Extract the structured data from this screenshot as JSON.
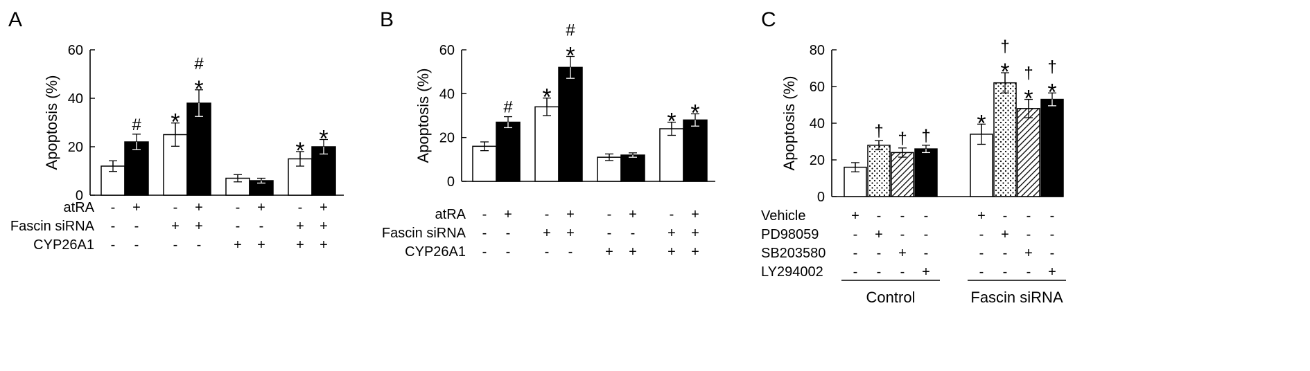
{
  "chart_data": [
    {
      "type": "bar",
      "panel_label": "A",
      "ylabel": "Apoptosis (%)",
      "ylim": [
        0,
        60
      ],
      "yticks": [
        "0",
        "20",
        "40",
        "60"
      ],
      "bar_fills": [
        "white",
        "black",
        "white",
        "black",
        "white",
        "black",
        "white",
        "black"
      ],
      "values": [
        12,
        22,
        25,
        38,
        7,
        6,
        15,
        20
      ],
      "errors": [
        2.2,
        3.2,
        4.8,
        5.5,
        1.5,
        1.0,
        3.0,
        3.0
      ],
      "significance": [
        [],
        [
          "#"
        ],
        [
          "*"
        ],
        [
          "*",
          "#"
        ],
        [],
        [],
        [
          "*"
        ],
        [
          "*"
        ]
      ],
      "conditions": [
        {
          "label": "atRA",
          "signs": [
            "-",
            "+",
            "-",
            "+",
            "-",
            "+",
            "-",
            "+"
          ]
        },
        {
          "label": "Fascin siRNA",
          "signs": [
            "-",
            "-",
            "+",
            "+",
            "-",
            "-",
            "+",
            "+"
          ]
        },
        {
          "label": "CYP26A1",
          "signs": [
            "-",
            "-",
            "-",
            "-",
            "+",
            "+",
            "+",
            "+"
          ]
        }
      ]
    },
    {
      "type": "bar",
      "panel_label": "B",
      "ylabel": "Apoptosis (%)",
      "ylim": [
        0,
        60
      ],
      "yticks": [
        "0",
        "20",
        "40",
        "60"
      ],
      "bar_fills": [
        "white",
        "black",
        "white",
        "black",
        "white",
        "black",
        "white",
        "black"
      ],
      "values": [
        16,
        27,
        34,
        52,
        11,
        12,
        24,
        28
      ],
      "errors": [
        2.0,
        2.5,
        4.0,
        5.0,
        1.5,
        1.0,
        3.0,
        2.8
      ],
      "significance": [
        [],
        [
          "#"
        ],
        [
          "*"
        ],
        [
          "*",
          "#"
        ],
        [],
        [],
        [
          "*"
        ],
        [
          "*"
        ]
      ],
      "conditions": [
        {
          "label": "atRA",
          "signs": [
            "-",
            "+",
            "-",
            "+",
            "-",
            "+",
            "-",
            "+"
          ]
        },
        {
          "label": "Fascin siRNA",
          "signs": [
            "-",
            "-",
            "+",
            "+",
            "-",
            "-",
            "+",
            "+"
          ]
        },
        {
          "label": "CYP26A1",
          "signs": [
            "-",
            "-",
            "-",
            "-",
            "+",
            "+",
            "+",
            "+"
          ]
        }
      ]
    },
    {
      "type": "bar",
      "panel_label": "C",
      "ylabel": "Apoptosis (%)",
      "ylim": [
        0,
        80
      ],
      "yticks": [
        "0",
        "20",
        "40",
        "60",
        "80"
      ],
      "bar_fills": [
        "white",
        "dots",
        "hatch",
        "black",
        "white",
        "dots",
        "hatch",
        "black"
      ],
      "values": [
        16,
        28,
        24,
        26,
        34,
        62,
        48,
        53
      ],
      "errors": [
        2.5,
        2.5,
        2.5,
        2.0,
        5.5,
        5.5,
        5.0,
        3.5
      ],
      "significance": [
        [],
        [
          "†"
        ],
        [
          "†"
        ],
        [
          "†"
        ],
        [
          "*"
        ],
        [
          "*",
          "†"
        ],
        [
          "*",
          "†"
        ],
        [
          "*",
          "†"
        ]
      ],
      "conditions": [
        {
          "label": "Vehicle",
          "signs": [
            "+",
            "-",
            "-",
            "-",
            "+",
            "-",
            "-",
            "-"
          ]
        },
        {
          "label": "PD98059",
          "signs": [
            "-",
            "+",
            "-",
            "-",
            "-",
            "+",
            "-",
            "-"
          ]
        },
        {
          "label": "SB203580",
          "signs": [
            "-",
            "-",
            "+",
            "-",
            "-",
            "-",
            "+",
            "-"
          ]
        },
        {
          "label": "LY294002",
          "signs": [
            "-",
            "-",
            "-",
            "+",
            "-",
            "-",
            "-",
            "+"
          ]
        }
      ],
      "groups": [
        "Control",
        "Fascin siRNA"
      ]
    }
  ]
}
